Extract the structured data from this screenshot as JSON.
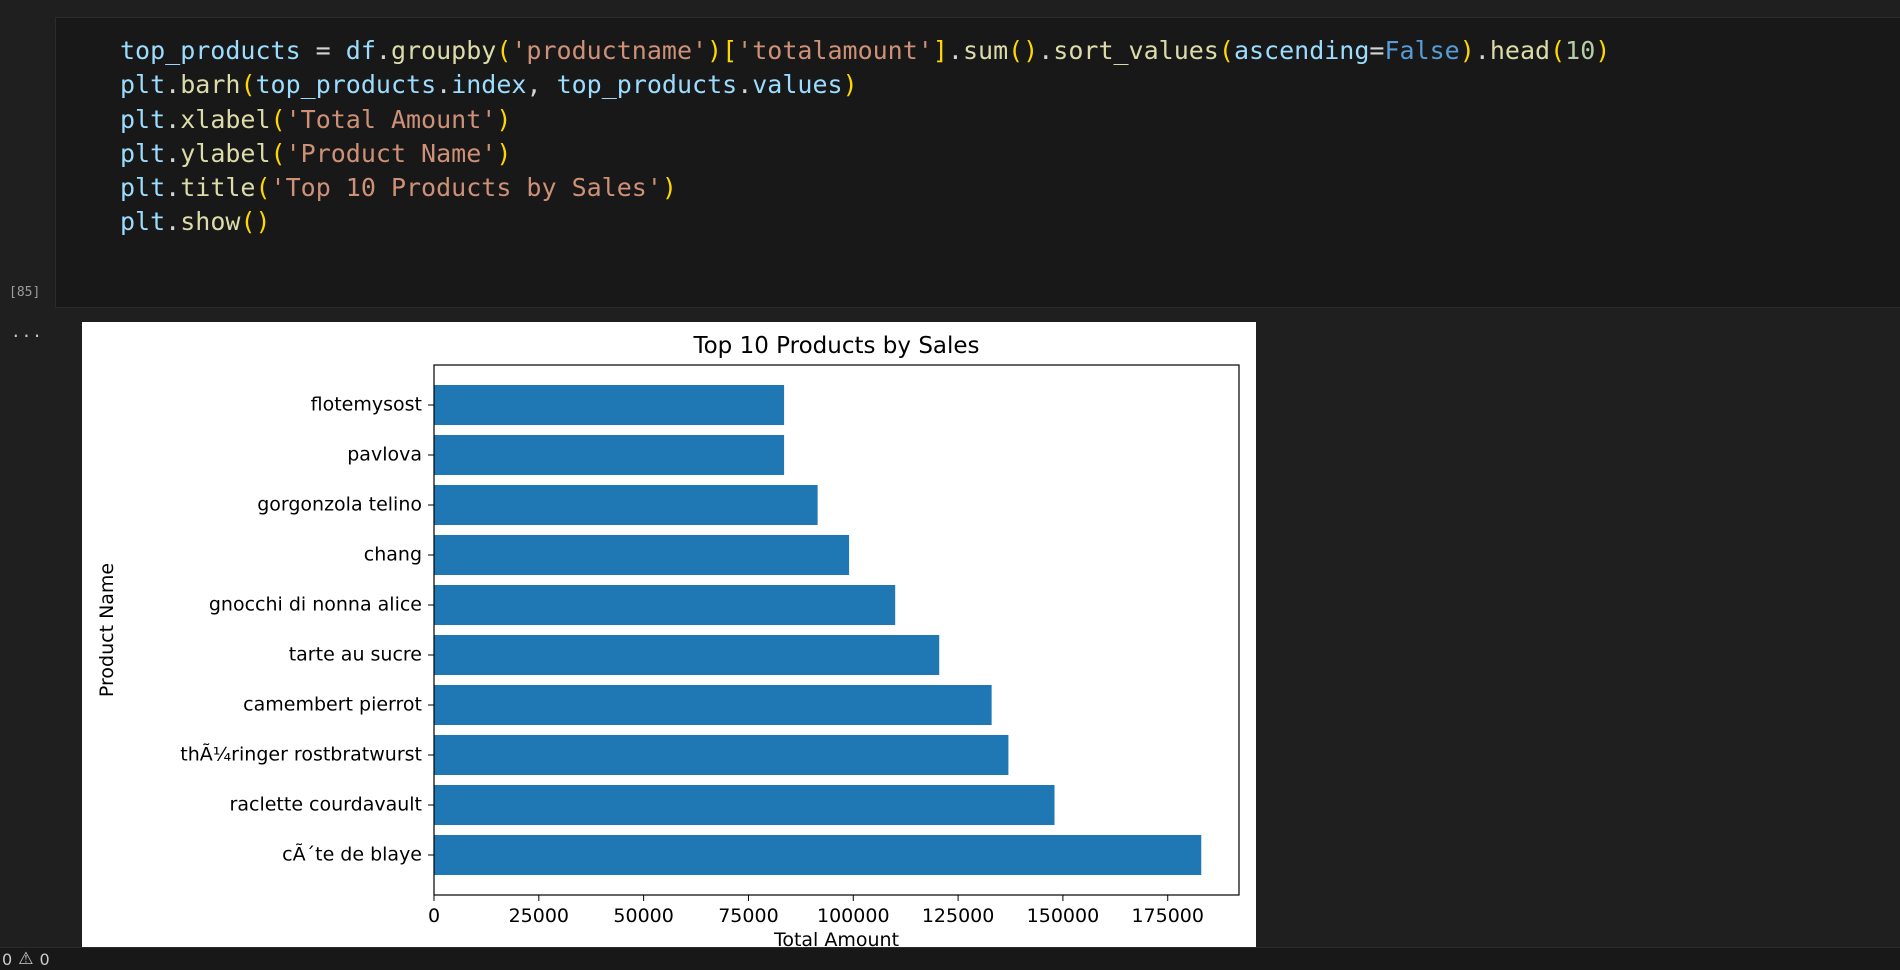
{
  "cell": {
    "execution_count": "[85]",
    "output_menu": "...",
    "code_lines": [
      [
        {
          "t": "top_products",
          "c": "var"
        },
        {
          "t": " = ",
          "c": "op"
        },
        {
          "t": "df",
          "c": "var"
        },
        {
          "t": ".",
          "c": "op"
        },
        {
          "t": "groupby",
          "c": "fn"
        },
        {
          "t": "(",
          "c": "b1"
        },
        {
          "t": "'productname'",
          "c": "str"
        },
        {
          "t": ")",
          "c": "b1"
        },
        {
          "t": "[",
          "c": "b1"
        },
        {
          "t": "'totalamount'",
          "c": "str"
        },
        {
          "t": "]",
          "c": "b1"
        },
        {
          "t": ".",
          "c": "op"
        },
        {
          "t": "sum",
          "c": "fn"
        },
        {
          "t": "()",
          "c": "b1"
        },
        {
          "t": ".",
          "c": "op"
        },
        {
          "t": "sort_values",
          "c": "fn"
        },
        {
          "t": "(",
          "c": "b1"
        },
        {
          "t": "ascending",
          "c": "var"
        },
        {
          "t": "=",
          "c": "op"
        },
        {
          "t": "False",
          "c": "kw"
        },
        {
          "t": ")",
          "c": "b1"
        },
        {
          "t": ".",
          "c": "op"
        },
        {
          "t": "head",
          "c": "fn"
        },
        {
          "t": "(",
          "c": "b1"
        },
        {
          "t": "10",
          "c": "num"
        },
        {
          "t": ")",
          "c": "b1"
        }
      ],
      [
        {
          "t": "plt",
          "c": "var"
        },
        {
          "t": ".",
          "c": "op"
        },
        {
          "t": "barh",
          "c": "fn"
        },
        {
          "t": "(",
          "c": "b1"
        },
        {
          "t": "top_products",
          "c": "var"
        },
        {
          "t": ".",
          "c": "op"
        },
        {
          "t": "index",
          "c": "var"
        },
        {
          "t": ", ",
          "c": "op"
        },
        {
          "t": "top_products",
          "c": "var"
        },
        {
          "t": ".",
          "c": "op"
        },
        {
          "t": "values",
          "c": "var"
        },
        {
          "t": ")",
          "c": "b1"
        }
      ],
      [
        {
          "t": "plt",
          "c": "var"
        },
        {
          "t": ".",
          "c": "op"
        },
        {
          "t": "xlabel",
          "c": "fn"
        },
        {
          "t": "(",
          "c": "b1"
        },
        {
          "t": "'Total Amount'",
          "c": "str"
        },
        {
          "t": ")",
          "c": "b1"
        }
      ],
      [
        {
          "t": "plt",
          "c": "var"
        },
        {
          "t": ".",
          "c": "op"
        },
        {
          "t": "ylabel",
          "c": "fn"
        },
        {
          "t": "(",
          "c": "b1"
        },
        {
          "t": "'Product Name'",
          "c": "str"
        },
        {
          "t": ")",
          "c": "b1"
        }
      ],
      [
        {
          "t": "plt",
          "c": "var"
        },
        {
          "t": ".",
          "c": "op"
        },
        {
          "t": "title",
          "c": "fn"
        },
        {
          "t": "(",
          "c": "b1"
        },
        {
          "t": "'Top 10 Products by Sales'",
          "c": "str"
        },
        {
          "t": ")",
          "c": "b1"
        }
      ],
      [
        {
          "t": "plt",
          "c": "var"
        },
        {
          "t": ".",
          "c": "op"
        },
        {
          "t": "show",
          "c": "fn"
        },
        {
          "t": "()",
          "c": "b1"
        }
      ]
    ]
  },
  "chart_data": {
    "type": "bar",
    "orientation": "horizontal",
    "title": "Top 10 Products by Sales",
    "xlabel": "Total Amount",
    "ylabel": "Product Name",
    "categories": [
      "cÃ´te de blaye",
      "raclette courdavault",
      "thÃ¼ringer rostbratwurst",
      "camembert pierrot",
      "tarte au sucre",
      "gnocchi di nonna alice",
      "chang",
      "gorgonzola telino",
      "pavlova",
      "flotemysost"
    ],
    "values": [
      183000,
      148000,
      137000,
      133000,
      120500,
      110000,
      99000,
      91500,
      83500,
      83500
    ],
    "xlim": [
      0,
      192000
    ],
    "xticks": [
      0,
      25000,
      50000,
      75000,
      100000,
      125000,
      150000,
      175000
    ],
    "xtick_labels": [
      "0",
      "25000",
      "50000",
      "75000",
      "100000",
      "125000",
      "150000",
      "175000"
    ],
    "bar_color": "#1f77b4",
    "grid": false
  },
  "status_bar": {
    "errors": "0",
    "warnings": "0",
    "warning_icon": "warning-icon"
  }
}
